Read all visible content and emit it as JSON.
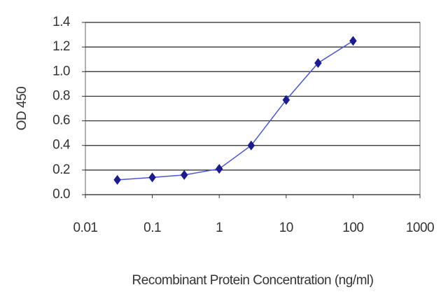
{
  "chart_data": {
    "type": "line",
    "xlabel": "Recombinant Protein Concentration (ng/ml)",
    "ylabel": "OD 450",
    "x": [
      0.03,
      0.1,
      0.3,
      1,
      3,
      10,
      30,
      100
    ],
    "series": [
      {
        "color": "#1c1c8f",
        "line_color": "#4a55d8",
        "marker": "diamond",
        "values": [
          0.12,
          0.14,
          0.16,
          0.21,
          0.4,
          0.77,
          1.07,
          1.25
        ]
      }
    ],
    "xscale": "log",
    "xlim": [
      0.01,
      1000
    ],
    "xticks": [
      0.01,
      0.1,
      1,
      10,
      100,
      1000
    ],
    "ylim": [
      0,
      1.4
    ],
    "yticks": [
      {
        "value": 0,
        "label": "0.0"
      },
      0.2,
      0.4,
      0.6,
      0.8,
      {
        "value": 1,
        "label": "1.0"
      },
      1.2,
      1.4
    ],
    "grid": "y"
  }
}
